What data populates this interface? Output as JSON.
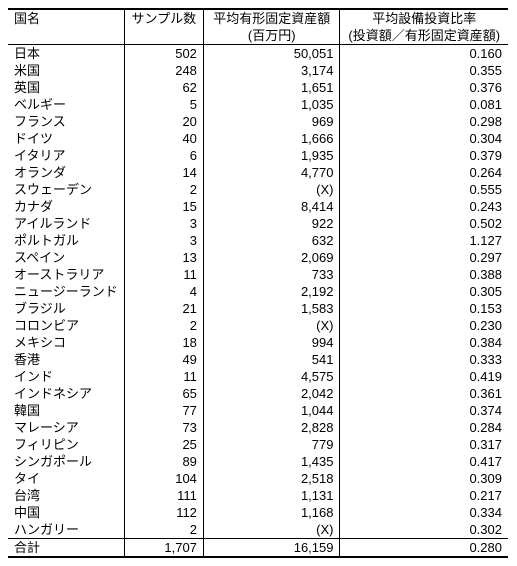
{
  "table": {
    "columns": [
      "国名",
      "サンプル数",
      "平均有形固定資産額",
      "平均設備投資比率"
    ],
    "sub_headers": [
      "",
      "",
      "(百万円)",
      "(投資額／有形固定資産額)"
    ],
    "rows": [
      {
        "country": "日本",
        "sample": "502",
        "asset": "50,051",
        "ratio": "0.160"
      },
      {
        "country": "米国",
        "sample": "248",
        "asset": "3,174",
        "ratio": "0.355"
      },
      {
        "country": "英国",
        "sample": "62",
        "asset": "1,651",
        "ratio": "0.376"
      },
      {
        "country": "ベルギー",
        "sample": "5",
        "asset": "1,035",
        "ratio": "0.081"
      },
      {
        "country": "フランス",
        "sample": "20",
        "asset": "969",
        "ratio": "0.298"
      },
      {
        "country": "ドイツ",
        "sample": "40",
        "asset": "1,666",
        "ratio": "0.304"
      },
      {
        "country": "イタリア",
        "sample": "6",
        "asset": "1,935",
        "ratio": "0.379"
      },
      {
        "country": "オランダ",
        "sample": "14",
        "asset": "4,770",
        "ratio": "0.264"
      },
      {
        "country": "スウェーデン",
        "sample": "2",
        "asset": "(X)",
        "ratio": "0.555"
      },
      {
        "country": "カナダ",
        "sample": "15",
        "asset": "8,414",
        "ratio": "0.243"
      },
      {
        "country": "アイルランド",
        "sample": "3",
        "asset": "922",
        "ratio": "0.502"
      },
      {
        "country": "ポルトガル",
        "sample": "3",
        "asset": "632",
        "ratio": "1.127"
      },
      {
        "country": "スペイン",
        "sample": "13",
        "asset": "2,069",
        "ratio": "0.297"
      },
      {
        "country": "オーストラリア",
        "sample": "11",
        "asset": "733",
        "ratio": "0.388"
      },
      {
        "country": "ニュージーランド",
        "sample": "4",
        "asset": "2,192",
        "ratio": "0.305"
      },
      {
        "country": "ブラジル",
        "sample": "21",
        "asset": "1,583",
        "ratio": "0.153"
      },
      {
        "country": "コロンビア",
        "sample": "2",
        "asset": "(X)",
        "ratio": "0.230"
      },
      {
        "country": "メキシコ",
        "sample": "18",
        "asset": "994",
        "ratio": "0.384"
      },
      {
        "country": "香港",
        "sample": "49",
        "asset": "541",
        "ratio": "0.333"
      },
      {
        "country": "インド",
        "sample": "11",
        "asset": "4,575",
        "ratio": "0.419"
      },
      {
        "country": "インドネシア",
        "sample": "65",
        "asset": "2,042",
        "ratio": "0.361"
      },
      {
        "country": "韓国",
        "sample": "77",
        "asset": "1,044",
        "ratio": "0.374"
      },
      {
        "country": "マレーシア",
        "sample": "73",
        "asset": "2,828",
        "ratio": "0.284"
      },
      {
        "country": "フィリピン",
        "sample": "25",
        "asset": "779",
        "ratio": "0.317"
      },
      {
        "country": "シンガポール",
        "sample": "89",
        "asset": "1,435",
        "ratio": "0.417"
      },
      {
        "country": "タイ",
        "sample": "104",
        "asset": "2,518",
        "ratio": "0.309"
      },
      {
        "country": "台湾",
        "sample": "111",
        "asset": "1,131",
        "ratio": "0.217"
      },
      {
        "country": "中国",
        "sample": "112",
        "asset": "1,168",
        "ratio": "0.334"
      },
      {
        "country": "ハンガリー",
        "sample": "2",
        "asset": "(X)",
        "ratio": "0.302"
      },
      {
        "country": "合計",
        "sample": "1,707",
        "asset": "16,159",
        "ratio": "0.280"
      }
    ]
  }
}
